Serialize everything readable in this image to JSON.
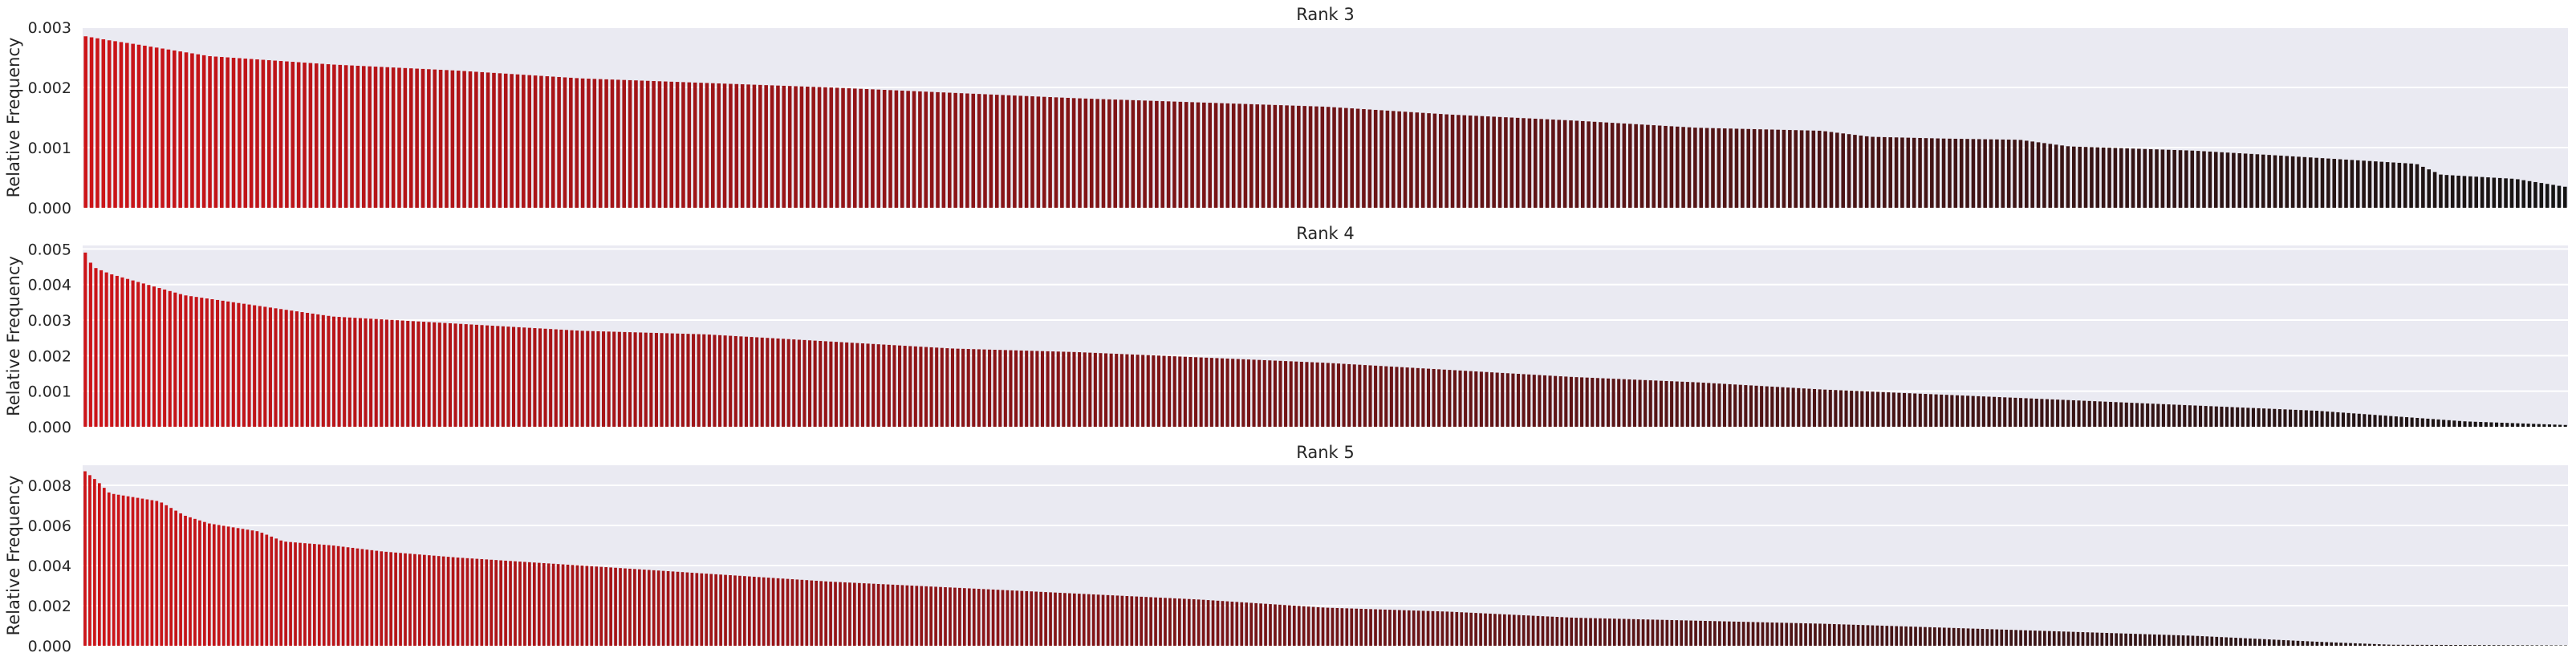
{
  "figure": {
    "background": "#ffffff",
    "plot_background": "#eaeaf2",
    "grid_color": "#ffffff",
    "bar_color_start": "#cc1418",
    "bar_color_end": "#141414"
  },
  "chart_data": [
    {
      "type": "bar",
      "title": "Rank 3",
      "ylabel": "Relative Frequency",
      "xlabel": "",
      "bar_count": 420,
      "ylim": [
        0,
        0.003
      ],
      "yticks": [
        0,
        0.001,
        0.002,
        0.003
      ],
      "ytick_labels": [
        "0.000",
        "0.001",
        "0.002",
        "0.003"
      ],
      "grid": true,
      "x_tick_labels": "none",
      "sorted": "descending",
      "profile": [
        [
          0.0,
          0.00285
        ],
        [
          0.01,
          0.00278
        ],
        [
          0.02,
          0.00272
        ],
        [
          0.035,
          0.00262
        ],
        [
          0.05,
          0.00252
        ],
        [
          0.1,
          0.00238
        ],
        [
          0.15,
          0.00228
        ],
        [
          0.2,
          0.00215
        ],
        [
          0.3,
          0.002
        ],
        [
          0.4,
          0.00182
        ],
        [
          0.5,
          0.00168
        ],
        [
          0.55,
          0.00155
        ],
        [
          0.6,
          0.00145
        ],
        [
          0.65,
          0.00133
        ],
        [
          0.7,
          0.00128
        ],
        [
          0.72,
          0.00118
        ],
        [
          0.75,
          0.00115
        ],
        [
          0.78,
          0.00113
        ],
        [
          0.8,
          0.00102
        ],
        [
          0.85,
          0.00095
        ],
        [
          0.88,
          0.00088
        ],
        [
          0.9,
          0.00083
        ],
        [
          0.94,
          0.00073
        ],
        [
          0.95,
          0.00055
        ],
        [
          0.98,
          0.00048
        ],
        [
          1.0,
          0.00035
        ]
      ]
    },
    {
      "type": "bar",
      "title": "Rank 4",
      "ylabel": "Relative Frequency",
      "xlabel": "",
      "bar_count": 470,
      "ylim": [
        0,
        0.0051
      ],
      "yticks": [
        0,
        0.001,
        0.002,
        0.003,
        0.004,
        0.005
      ],
      "ytick_labels": [
        "0.000",
        "0.001",
        "0.002",
        "0.003",
        "0.004",
        "0.005"
      ],
      "grid": true,
      "x_tick_labels": "none",
      "sorted": "descending",
      "profile": [
        [
          0.0,
          0.0049
        ],
        [
          0.003,
          0.0045
        ],
        [
          0.01,
          0.0043
        ],
        [
          0.02,
          0.0041
        ],
        [
          0.03,
          0.0039
        ],
        [
          0.04,
          0.0037
        ],
        [
          0.06,
          0.0035
        ],
        [
          0.08,
          0.0033
        ],
        [
          0.1,
          0.0031
        ],
        [
          0.15,
          0.0029
        ],
        [
          0.2,
          0.0027
        ],
        [
          0.25,
          0.0026
        ],
        [
          0.3,
          0.0024
        ],
        [
          0.35,
          0.0022
        ],
        [
          0.4,
          0.0021
        ],
        [
          0.45,
          0.00195
        ],
        [
          0.5,
          0.0018
        ],
        [
          0.55,
          0.0016
        ],
        [
          0.6,
          0.0014
        ],
        [
          0.65,
          0.00125
        ],
        [
          0.7,
          0.00105
        ],
        [
          0.75,
          0.0009
        ],
        [
          0.8,
          0.00075
        ],
        [
          0.85,
          0.0006
        ],
        [
          0.9,
          0.00045
        ],
        [
          0.93,
          0.0003
        ],
        [
          0.96,
          0.00015
        ],
        [
          1.0,
          5e-05
        ]
      ]
    },
    {
      "type": "bar",
      "title": "Rank 5",
      "ylabel": "Relative Frequency",
      "xlabel": "",
      "bar_count": 520,
      "ylim": [
        0,
        0.009
      ],
      "yticks": [
        0,
        0.002,
        0.004,
        0.006,
        0.008
      ],
      "ytick_labels": [
        "0.000",
        "0.002",
        "0.004",
        "0.006",
        "0.008"
      ],
      "grid": true,
      "x_tick_labels": "none",
      "sorted": "descending",
      "profile": [
        [
          0.0,
          0.0087
        ],
        [
          0.005,
          0.0082
        ],
        [
          0.01,
          0.0076
        ],
        [
          0.02,
          0.0074
        ],
        [
          0.03,
          0.0072
        ],
        [
          0.04,
          0.0065
        ],
        [
          0.05,
          0.0061
        ],
        [
          0.07,
          0.0057
        ],
        [
          0.08,
          0.0052
        ],
        [
          0.1,
          0.005
        ],
        [
          0.12,
          0.0047
        ],
        [
          0.15,
          0.0044
        ],
        [
          0.2,
          0.004
        ],
        [
          0.25,
          0.0036
        ],
        [
          0.3,
          0.0032
        ],
        [
          0.35,
          0.0029
        ],
        [
          0.4,
          0.0026
        ],
        [
          0.45,
          0.0023
        ],
        [
          0.5,
          0.0019
        ],
        [
          0.55,
          0.0017
        ],
        [
          0.6,
          0.0014
        ],
        [
          0.7,
          0.0011
        ],
        [
          0.75,
          0.0009
        ],
        [
          0.8,
          0.0007
        ],
        [
          0.85,
          0.0005
        ],
        [
          0.9,
          0.0002
        ],
        [
          0.93,
          5e-05
        ],
        [
          1.0,
          2e-05
        ]
      ]
    }
  ]
}
